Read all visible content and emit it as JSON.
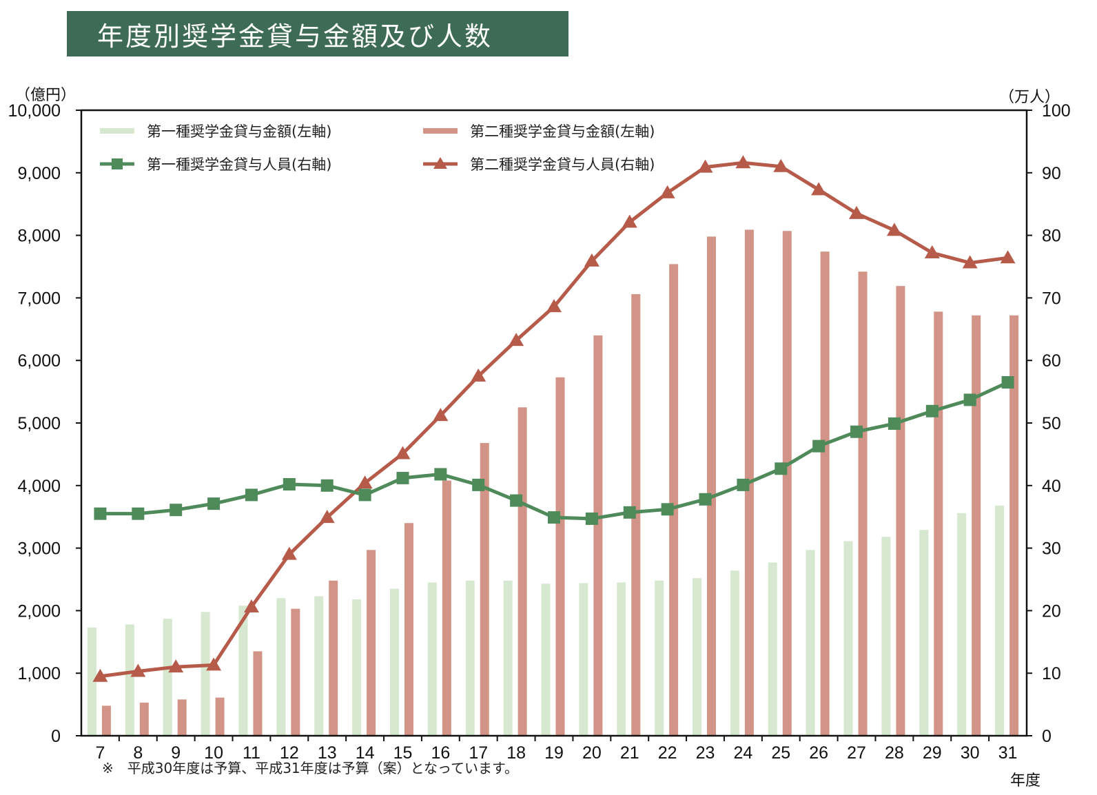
{
  "title": "年度別奨学金貸与金額及び人数",
  "footnote": "※　平成30年度は予算、平成31年度は予算（案）となっています。",
  "colors": {
    "title_bg": "#3e6b55",
    "type1_amount": "#d6e8cf",
    "type2_amount": "#d19486",
    "type1_people": "#4f8a5a",
    "type2_people": "#b65a4a"
  },
  "chart_data": {
    "type": "bar",
    "categories": [
      "7",
      "8",
      "9",
      "10",
      "11",
      "12",
      "13",
      "14",
      "15",
      "16",
      "17",
      "18",
      "19",
      "20",
      "21",
      "22",
      "23",
      "24",
      "25",
      "26",
      "27",
      "28",
      "29",
      "30",
      "31"
    ],
    "xlabel": "年度",
    "ylabel_left": "（億円）",
    "ylabel_right": "（万人）",
    "ylim_left": [
      0,
      10000
    ],
    "ylim_right": [
      0,
      100
    ],
    "yticks_left": [
      "0",
      "1,000",
      "2,000",
      "3,000",
      "4,000",
      "5,000",
      "6,000",
      "7,000",
      "8,000",
      "9,000",
      "10,000"
    ],
    "yticks_right": [
      "0",
      "10",
      "20",
      "30",
      "40",
      "50",
      "60",
      "70",
      "80",
      "90",
      "100"
    ],
    "legend_position": "top-left",
    "series": [
      {
        "name": "第一種奨学金貸与金額(左軸)",
        "type": "bar",
        "axis": "left",
        "values": [
          1730,
          1780,
          1870,
          1980,
          2080,
          2200,
          2230,
          2180,
          2350,
          2450,
          2480,
          2480,
          2430,
          2440,
          2450,
          2480,
          2520,
          2640,
          2770,
          2970,
          3110,
          3180,
          3290,
          3560,
          3680
        ]
      },
      {
        "name": "第二種奨学金貸与金額(左軸)",
        "type": "bar",
        "axis": "left",
        "values": [
          480,
          530,
          580,
          610,
          1350,
          2030,
          2480,
          2970,
          3400,
          4080,
          4680,
          5250,
          5730,
          6400,
          7060,
          7540,
          7980,
          8090,
          8070,
          7740,
          7420,
          7190,
          6780,
          6720,
          6720
        ]
      },
      {
        "name": "第一種奨学金貸与人員(右軸)",
        "type": "line",
        "axis": "right",
        "marker": "square",
        "values": [
          35.5,
          35.5,
          36.1,
          37.1,
          38.5,
          40.2,
          40.0,
          38.5,
          41.2,
          41.8,
          40.1,
          37.6,
          34.9,
          34.7,
          35.7,
          36.2,
          37.8,
          40.1,
          42.7,
          46.3,
          48.6,
          49.9,
          51.9,
          53.7,
          56.5
        ]
      },
      {
        "name": "第二種奨学金貸与人員(右軸)",
        "type": "line",
        "axis": "right",
        "marker": "triangle",
        "values": [
          9.5,
          10.3,
          11.0,
          11.3,
          20.6,
          29.0,
          34.9,
          40.4,
          45.1,
          51.2,
          57.5,
          63.2,
          68.6,
          75.9,
          82.1,
          86.8,
          90.9,
          91.6,
          91.0,
          87.3,
          83.5,
          80.8,
          77.2,
          75.6,
          76.4
        ]
      }
    ]
  }
}
